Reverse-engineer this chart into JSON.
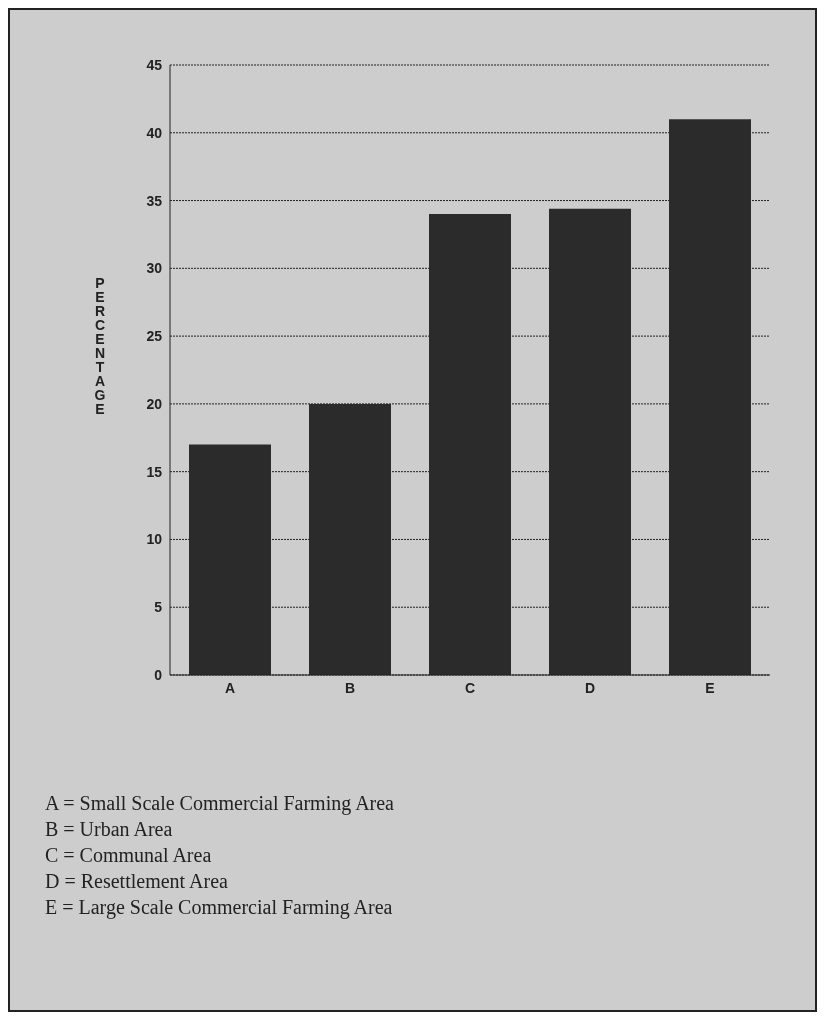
{
  "chart_data": {
    "type": "bar",
    "ylabel": "PERCENTAGE",
    "categories": [
      "A",
      "B",
      "C",
      "D",
      "E"
    ],
    "values": [
      17,
      20,
      34,
      34.4,
      41
    ],
    "color": "#2b2b2b",
    "ylim": [
      0,
      45
    ],
    "yticks": [
      0,
      5,
      10,
      15,
      20,
      25,
      30,
      35,
      40,
      45
    ],
    "grid": "y",
    "annotations": [
      "A = Small Scale Commercial Farming Area",
      "B = Urban Area",
      "C = Communal Area",
      "D = Resettlement Area",
      "E = Large Scale Commercial Farming Area"
    ]
  }
}
